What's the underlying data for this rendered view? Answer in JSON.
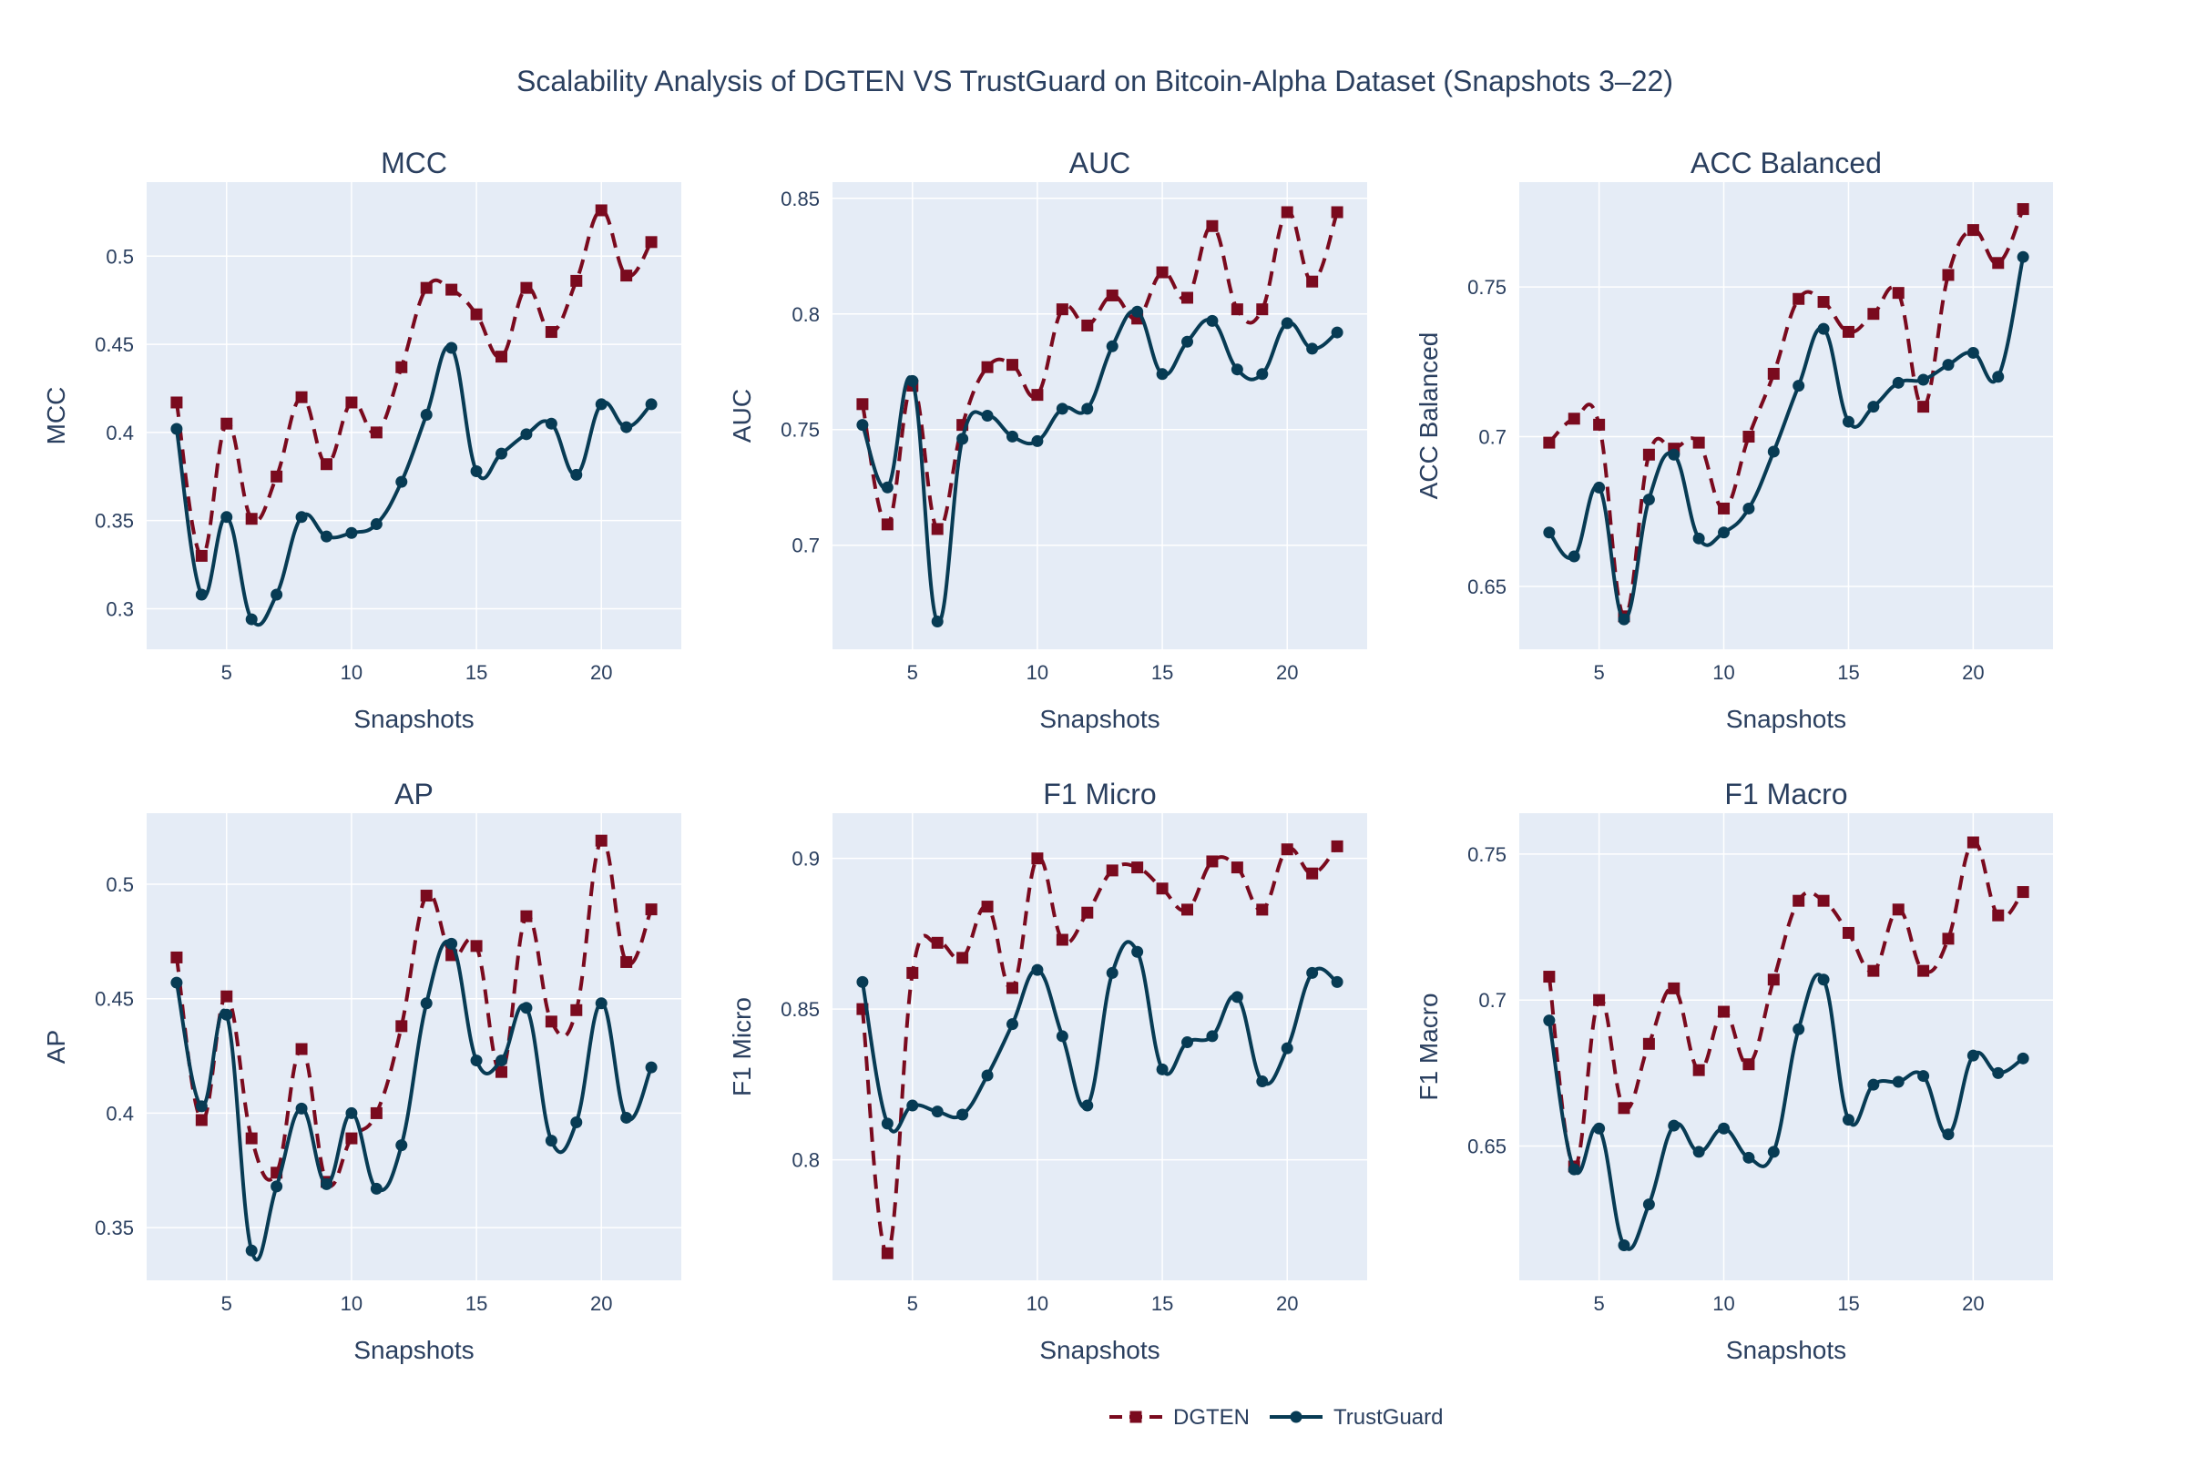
{
  "title": "Scalability Analysis of DGTEN VS TrustGuard on Bitcoin-Alpha Dataset (Snapshots 3–22)",
  "legend": {
    "items": [
      {
        "name": "DGTEN",
        "color": "#7a0a1e",
        "dash": true,
        "marker": "square"
      },
      {
        "name": "TrustGuard",
        "color": "#073b54",
        "dash": false,
        "marker": "circle"
      }
    ]
  },
  "chart_data": [
    {
      "type": "line",
      "title": "MCC",
      "xlabel": "Snapshots",
      "ylabel": "MCC",
      "xlim": [
        1.8,
        23.2
      ],
      "ylim": [
        0.277,
        0.542
      ],
      "xticks": [
        5,
        10,
        15,
        20
      ],
      "yticks": [
        0.3,
        0.35,
        0.4,
        0.45,
        0.5
      ],
      "ytick_labels": [
        "0.3",
        "0.35",
        "0.4",
        "0.45",
        "0.5"
      ],
      "x": [
        3,
        4,
        5,
        6,
        7,
        8,
        9,
        10,
        11,
        12,
        13,
        14,
        15,
        16,
        17,
        18,
        19,
        20,
        21,
        22
      ],
      "series": [
        {
          "name": "DGTEN",
          "values": [
            0.417,
            0.33,
            0.405,
            0.351,
            0.375,
            0.42,
            0.382,
            0.417,
            0.4,
            0.437,
            0.482,
            0.481,
            0.467,
            0.443,
            0.482,
            0.457,
            0.486,
            0.526,
            0.489,
            0.508
          ]
        },
        {
          "name": "TrustGuard",
          "values": [
            0.402,
            0.308,
            0.352,
            0.294,
            0.308,
            0.352,
            0.341,
            0.343,
            0.348,
            0.372,
            0.41,
            0.448,
            0.378,
            0.388,
            0.399,
            0.405,
            0.376,
            0.416,
            0.403,
            0.416
          ]
        }
      ]
    },
    {
      "type": "line",
      "title": "AUC",
      "xlabel": "Snapshots",
      "ylabel": "AUC",
      "xlim": [
        1.8,
        23.2
      ],
      "ylim": [
        0.655,
        0.857
      ],
      "xticks": [
        5,
        10,
        15,
        20
      ],
      "yticks": [
        0.7,
        0.75,
        0.8,
        0.85
      ],
      "ytick_labels": [
        "0.7",
        "0.75",
        "0.8",
        "0.85"
      ],
      "x": [
        3,
        4,
        5,
        6,
        7,
        8,
        9,
        10,
        11,
        12,
        13,
        14,
        15,
        16,
        17,
        18,
        19,
        20,
        21,
        22
      ],
      "series": [
        {
          "name": "DGTEN",
          "values": [
            0.761,
            0.709,
            0.769,
            0.707,
            0.752,
            0.777,
            0.778,
            0.765,
            0.802,
            0.795,
            0.808,
            0.798,
            0.818,
            0.807,
            0.838,
            0.802,
            0.802,
            0.844,
            0.814,
            0.844
          ]
        },
        {
          "name": "TrustGuard",
          "values": [
            0.752,
            0.725,
            0.771,
            0.667,
            0.746,
            0.756,
            0.747,
            0.745,
            0.759,
            0.759,
            0.786,
            0.801,
            0.774,
            0.788,
            0.797,
            0.776,
            0.774,
            0.796,
            0.785,
            0.792
          ]
        }
      ]
    },
    {
      "type": "line",
      "title": "ACC Balanced",
      "xlabel": "Snapshots",
      "ylabel": "ACC Balanced",
      "xlim": [
        1.8,
        23.2
      ],
      "ylim": [
        0.629,
        0.785
      ],
      "xticks": [
        5,
        10,
        15,
        20
      ],
      "yticks": [
        0.65,
        0.7,
        0.75
      ],
      "ytick_labels": [
        "0.65",
        "0.7",
        "0.75"
      ],
      "x": [
        3,
        4,
        5,
        6,
        7,
        8,
        9,
        10,
        11,
        12,
        13,
        14,
        15,
        16,
        17,
        18,
        19,
        20,
        21,
        22
      ],
      "series": [
        {
          "name": "DGTEN",
          "values": [
            0.698,
            0.706,
            0.704,
            0.64,
            0.694,
            0.696,
            0.698,
            0.676,
            0.7,
            0.721,
            0.746,
            0.745,
            0.735,
            0.741,
            0.748,
            0.71,
            0.754,
            0.769,
            0.758,
            0.776
          ]
        },
        {
          "name": "TrustGuard",
          "values": [
            0.668,
            0.66,
            0.683,
            0.639,
            0.679,
            0.694,
            0.666,
            0.668,
            0.676,
            0.695,
            0.717,
            0.736,
            0.705,
            0.71,
            0.718,
            0.719,
            0.724,
            0.728,
            0.72,
            0.76
          ]
        }
      ]
    },
    {
      "type": "line",
      "title": "AP",
      "xlabel": "Snapshots",
      "ylabel": "AP",
      "xlim": [
        1.8,
        23.2
      ],
      "ylim": [
        0.327,
        0.531
      ],
      "xticks": [
        5,
        10,
        15,
        20
      ],
      "yticks": [
        0.35,
        0.4,
        0.45,
        0.5
      ],
      "ytick_labels": [
        "0.35",
        "0.4",
        "0.45",
        "0.5"
      ],
      "x": [
        3,
        4,
        5,
        6,
        7,
        8,
        9,
        10,
        11,
        12,
        13,
        14,
        15,
        16,
        17,
        18,
        19,
        20,
        21,
        22
      ],
      "series": [
        {
          "name": "DGTEN",
          "values": [
            0.468,
            0.397,
            0.451,
            0.389,
            0.374,
            0.428,
            0.37,
            0.389,
            0.4,
            0.438,
            0.495,
            0.469,
            0.473,
            0.418,
            0.486,
            0.44,
            0.445,
            0.519,
            0.466,
            0.489
          ]
        },
        {
          "name": "TrustGuard",
          "values": [
            0.457,
            0.403,
            0.443,
            0.34,
            0.368,
            0.402,
            0.369,
            0.4,
            0.367,
            0.386,
            0.448,
            0.474,
            0.423,
            0.423,
            0.446,
            0.388,
            0.396,
            0.448,
            0.398,
            0.42
          ]
        }
      ]
    },
    {
      "type": "line",
      "title": "F1 Micro",
      "xlabel": "Snapshots",
      "ylabel": "F1 Micro",
      "xlim": [
        1.8,
        23.2
      ],
      "ylim": [
        0.76,
        0.915
      ],
      "xticks": [
        5,
        10,
        15,
        20
      ],
      "yticks": [
        0.8,
        0.85,
        0.9
      ],
      "ytick_labels": [
        "0.8",
        "0.85",
        "0.9"
      ],
      "x": [
        3,
        4,
        5,
        6,
        7,
        8,
        9,
        10,
        11,
        12,
        13,
        14,
        15,
        16,
        17,
        18,
        19,
        20,
        21,
        22
      ],
      "series": [
        {
          "name": "DGTEN",
          "values": [
            0.85,
            0.769,
            0.862,
            0.872,
            0.867,
            0.884,
            0.857,
            0.9,
            0.873,
            0.882,
            0.896,
            0.897,
            0.89,
            0.883,
            0.899,
            0.897,
            0.883,
            0.903,
            0.895,
            0.904
          ]
        },
        {
          "name": "TrustGuard",
          "values": [
            0.859,
            0.812,
            0.818,
            0.816,
            0.815,
            0.828,
            0.845,
            0.863,
            0.841,
            0.818,
            0.862,
            0.869,
            0.83,
            0.839,
            0.841,
            0.854,
            0.826,
            0.837,
            0.862,
            0.859
          ]
        }
      ]
    },
    {
      "type": "line",
      "title": "F1 Macro",
      "xlabel": "Snapshots",
      "ylabel": "F1 Macro",
      "xlim": [
        1.8,
        23.2
      ],
      "ylim": [
        0.604,
        0.764
      ],
      "xticks": [
        5,
        10,
        15,
        20
      ],
      "yticks": [
        0.65,
        0.7,
        0.75
      ],
      "ytick_labels": [
        "0.65",
        "0.7",
        "0.75"
      ],
      "x": [
        3,
        4,
        5,
        6,
        7,
        8,
        9,
        10,
        11,
        12,
        13,
        14,
        15,
        16,
        17,
        18,
        19,
        20,
        21,
        22
      ],
      "series": [
        {
          "name": "DGTEN",
          "values": [
            0.708,
            0.643,
            0.7,
            0.663,
            0.685,
            0.704,
            0.676,
            0.696,
            0.678,
            0.707,
            0.734,
            0.734,
            0.723,
            0.71,
            0.731,
            0.71,
            0.721,
            0.754,
            0.729,
            0.737
          ]
        },
        {
          "name": "TrustGuard",
          "values": [
            0.693,
            0.642,
            0.656,
            0.616,
            0.63,
            0.657,
            0.648,
            0.656,
            0.646,
            0.648,
            0.69,
            0.707,
            0.659,
            0.671,
            0.672,
            0.674,
            0.654,
            0.681,
            0.675,
            0.68
          ]
        }
      ]
    }
  ]
}
